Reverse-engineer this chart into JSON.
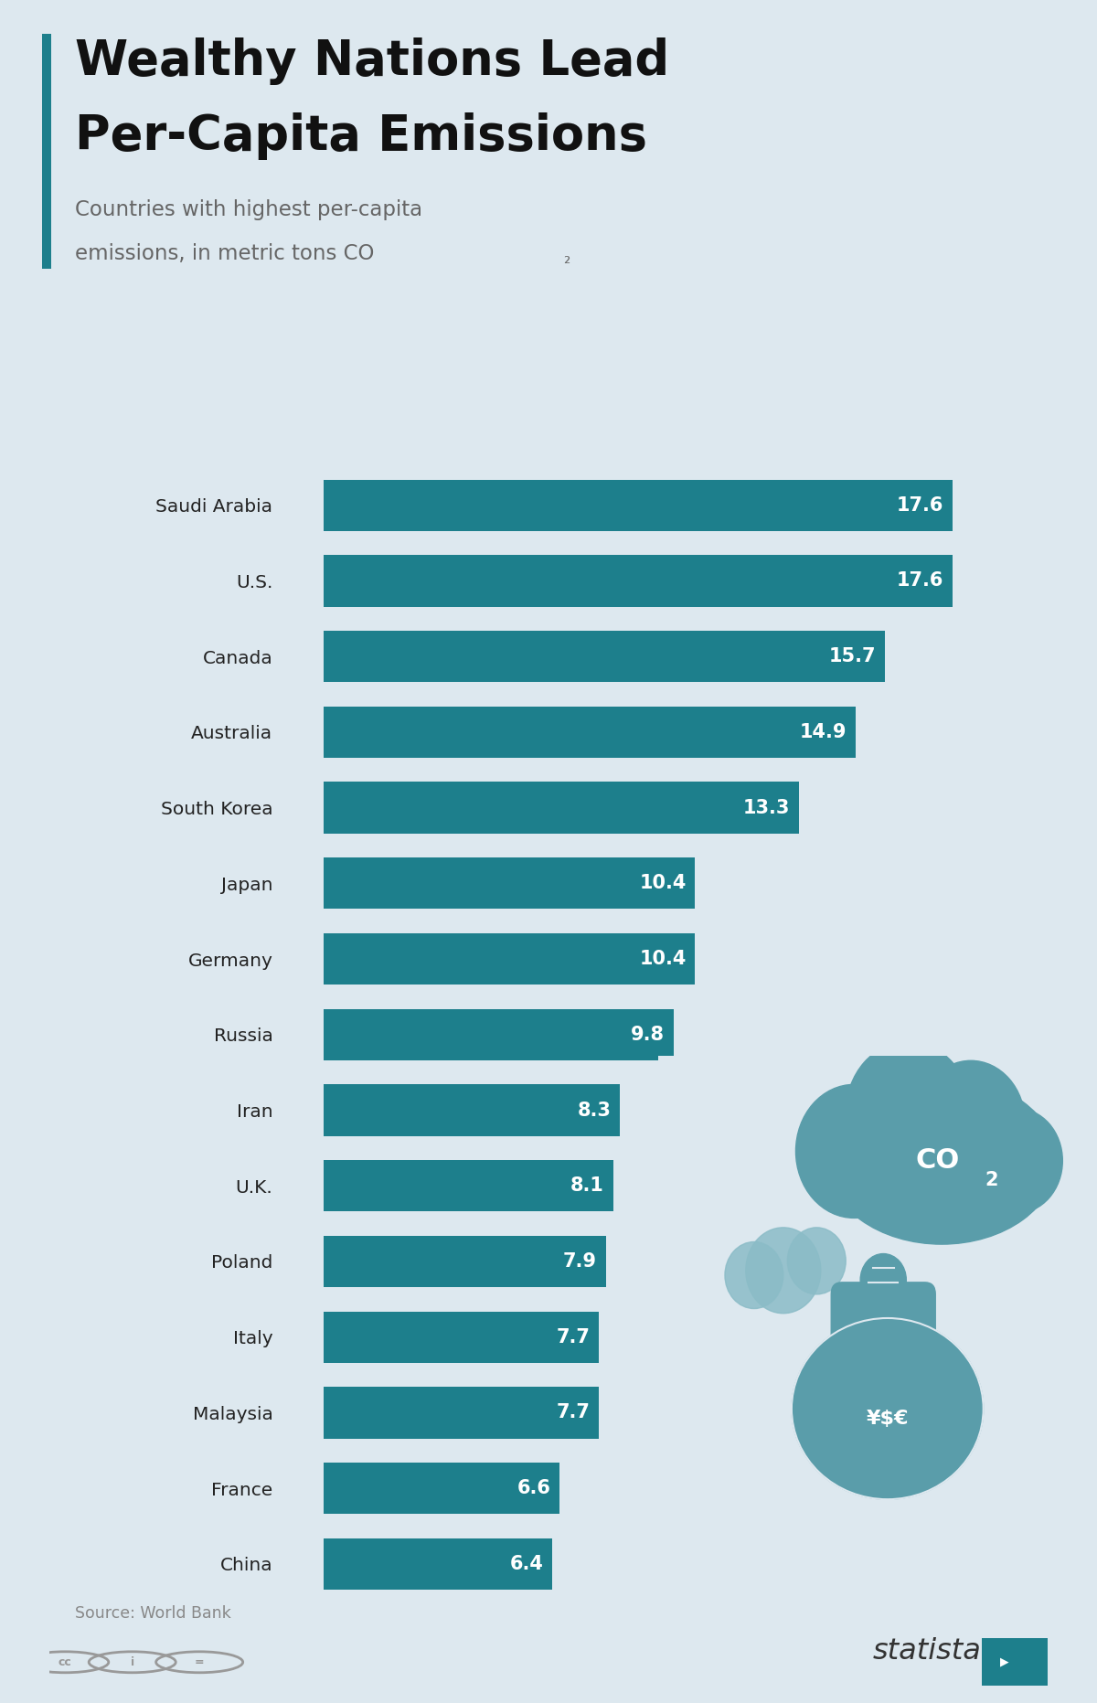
{
  "title_line1": "Wealthy Nations Lead",
  "title_line2": "Per-Capita Emissions",
  "subtitle_line1": "Countries with highest per-capita",
  "subtitle_line2": "emissions, in metric tons CO",
  "subtitle_co2": "₂",
  "source": "Source: World Bank",
  "background_color": "#dde8ef",
  "bar_color": "#1d7f8c",
  "accent_color": "#1d7f8c",
  "title_color": "#111111",
  "subtitle_color": "#666666",
  "label_color": "#222222",
  "value_color": "#ffffff",
  "categories": [
    "Saudi Arabia",
    "U.S.",
    "Canada",
    "Australia",
    "South Korea",
    "Japan",
    "Germany",
    "Russia",
    "Iran",
    "U.K.",
    "Poland",
    "Italy",
    "Malaysia",
    "France",
    "China"
  ],
  "values": [
    17.6,
    17.6,
    15.7,
    14.9,
    13.3,
    10.4,
    10.4,
    9.8,
    8.3,
    8.1,
    7.9,
    7.7,
    7.7,
    6.6,
    6.4
  ],
  "xlim": [
    0,
    19.5
  ],
  "bar_height": 0.68,
  "figsize": [
    12,
    18.63
  ]
}
